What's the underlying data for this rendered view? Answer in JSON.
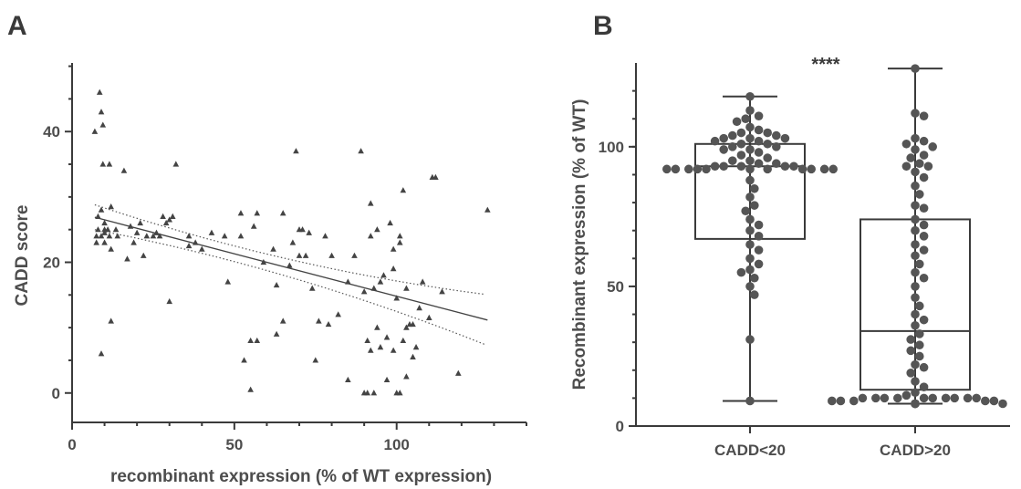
{
  "panels": {
    "a_letter": "A",
    "b_letter": "B"
  },
  "colors": {
    "ink": "#3a3a3a",
    "point": "#555555",
    "text": "#4d4d4d"
  },
  "chart_data": [
    {
      "type": "scatter",
      "panel": "A",
      "xlabel": "recombinant expression (% of WT expression)",
      "ylabel": "CADD score",
      "xlim": [
        0,
        140
      ],
      "ylim": [
        -4.5,
        50.5
      ],
      "xticks": [
        0,
        50,
        100
      ],
      "yticks": [
        0,
        20,
        40
      ],
      "marker": "triangle",
      "regression": {
        "slope": -0.13,
        "intercept": 27.8,
        "x_range": [
          7,
          128
        ],
        "ci_band": "dotted"
      },
      "points": [
        [
          7,
          40
        ],
        [
          7.5,
          23
        ],
        [
          7.5,
          24
        ],
        [
          8,
          25
        ],
        [
          8,
          27
        ],
        [
          8.5,
          46
        ],
        [
          9,
          43
        ],
        [
          9,
          6
        ],
        [
          9,
          28
        ],
        [
          9,
          24
        ],
        [
          9.5,
          41
        ],
        [
          9.5,
          35
        ],
        [
          10,
          26
        ],
        [
          10,
          25
        ],
        [
          10,
          24.5
        ],
        [
          10,
          23
        ],
        [
          11,
          25
        ],
        [
          11.5,
          35
        ],
        [
          11.5,
          24
        ],
        [
          12,
          28.5
        ],
        [
          12,
          22
        ],
        [
          12,
          11
        ],
        [
          13.5,
          25
        ],
        [
          14,
          24
        ],
        [
          16,
          34
        ],
        [
          17,
          20.5
        ],
        [
          18,
          25.5
        ],
        [
          19,
          23
        ],
        [
          20,
          24.5
        ],
        [
          21,
          26
        ],
        [
          22,
          21
        ],
        [
          23,
          24
        ],
        [
          25,
          24
        ],
        [
          26,
          24.5
        ],
        [
          27,
          24
        ],
        [
          28,
          27
        ],
        [
          29,
          26
        ],
        [
          30,
          26.5
        ],
        [
          30,
          14
        ],
        [
          31,
          27
        ],
        [
          32,
          35
        ],
        [
          36,
          24
        ],
        [
          36,
          22.5
        ],
        [
          38,
          23
        ],
        [
          40,
          22
        ],
        [
          43,
          24.5
        ],
        [
          47,
          24
        ],
        [
          48,
          17
        ],
        [
          52,
          24
        ],
        [
          52,
          27.5
        ],
        [
          53,
          5
        ],
        [
          55,
          8
        ],
        [
          55,
          0.5
        ],
        [
          56,
          25.5
        ],
        [
          57,
          27.5
        ],
        [
          57,
          8
        ],
        [
          59,
          20
        ],
        [
          62,
          22
        ],
        [
          63,
          9
        ],
        [
          63,
          16.5
        ],
        [
          65,
          27.5
        ],
        [
          65,
          11
        ],
        [
          67,
          19.5
        ],
        [
          68,
          23
        ],
        [
          69,
          37
        ],
        [
          70,
          21
        ],
        [
          70,
          25
        ],
        [
          71,
          25
        ],
        [
          72,
          21
        ],
        [
          73,
          24.5
        ],
        [
          74,
          16
        ],
        [
          75,
          5
        ],
        [
          76,
          11
        ],
        [
          78,
          24
        ],
        [
          79,
          10.5
        ],
        [
          80,
          21
        ],
        [
          82,
          12
        ],
        [
          85,
          2
        ],
        [
          85,
          17
        ],
        [
          87,
          21
        ],
        [
          89,
          37
        ],
        [
          90,
          15.5
        ],
        [
          90,
          0
        ],
        [
          91,
          0
        ],
        [
          91,
          8
        ],
        [
          92,
          29
        ],
        [
          92,
          24
        ],
        [
          92,
          6.5
        ],
        [
          93,
          16
        ],
        [
          93,
          0
        ],
        [
          94,
          10
        ],
        [
          94,
          25
        ],
        [
          95,
          17
        ],
        [
          95,
          7
        ],
        [
          96,
          18
        ],
        [
          97,
          8.5
        ],
        [
          97,
          2
        ],
        [
          98,
          26
        ],
        [
          99,
          19
        ],
        [
          99,
          6.5
        ],
        [
          99,
          22
        ],
        [
          100,
          0
        ],
        [
          100,
          14.5
        ],
        [
          101,
          24
        ],
        [
          101,
          23
        ],
        [
          101,
          0
        ],
        [
          102,
          31
        ],
        [
          102,
          8
        ],
        [
          103,
          16
        ],
        [
          103,
          10
        ],
        [
          103,
          2.5
        ],
        [
          104,
          10.5
        ],
        [
          105,
          10.5
        ],
        [
          105,
          5.5
        ],
        [
          106,
          7
        ],
        [
          107,
          13
        ],
        [
          108,
          17
        ],
        [
          110,
          11.5
        ],
        [
          111,
          33
        ],
        [
          112,
          33
        ],
        [
          114,
          15.5
        ],
        [
          119,
          3
        ],
        [
          128,
          28
        ]
      ]
    },
    {
      "type": "box",
      "panel": "B",
      "ylabel": "Recombinant expression (% of WT)",
      "ylim": [
        0,
        130
      ],
      "yticks": [
        0,
        50,
        100
      ],
      "categories": [
        "CADD<20",
        "CADD>20"
      ],
      "significance": "****",
      "boxes": [
        {
          "min": 9,
          "q1": 67,
          "median": 93,
          "q3": 101,
          "max": 118
        },
        {
          "min": 8,
          "q1": 13,
          "median": 34,
          "q3": 74,
          "max": 128
        }
      ],
      "points": [
        [
          118,
          113,
          111,
          110,
          109,
          107,
          106,
          105,
          105,
          104,
          104,
          103,
          103,
          103,
          102,
          102,
          101,
          101,
          100,
          100,
          99,
          99,
          98,
          97,
          96,
          95,
          95,
          94,
          94,
          93,
          93,
          93,
          93,
          93,
          92,
          92,
          92,
          92,
          92,
          92,
          92,
          92,
          92,
          92,
          92,
          88,
          85,
          82,
          79,
          77,
          74,
          72,
          70,
          68,
          65,
          63,
          60,
          58,
          56,
          55,
          53,
          50,
          47,
          31,
          9
        ],
        [
          128,
          112,
          111,
          103,
          102,
          101,
          100,
          99,
          97,
          96,
          94,
          93,
          93,
          91,
          89,
          86,
          83,
          79,
          78,
          74,
          72,
          70,
          68,
          65,
          63,
          61,
          58,
          55,
          53,
          50,
          46,
          43,
          40,
          38,
          36,
          33,
          31,
          29,
          27,
          25,
          22,
          21,
          19,
          16,
          14,
          12,
          11,
          10,
          10,
          10,
          10,
          10,
          10,
          10,
          10,
          10,
          10,
          9,
          9,
          9,
          9,
          9,
          8,
          8,
          8,
          8,
          8,
          8
        ]
      ]
    }
  ]
}
